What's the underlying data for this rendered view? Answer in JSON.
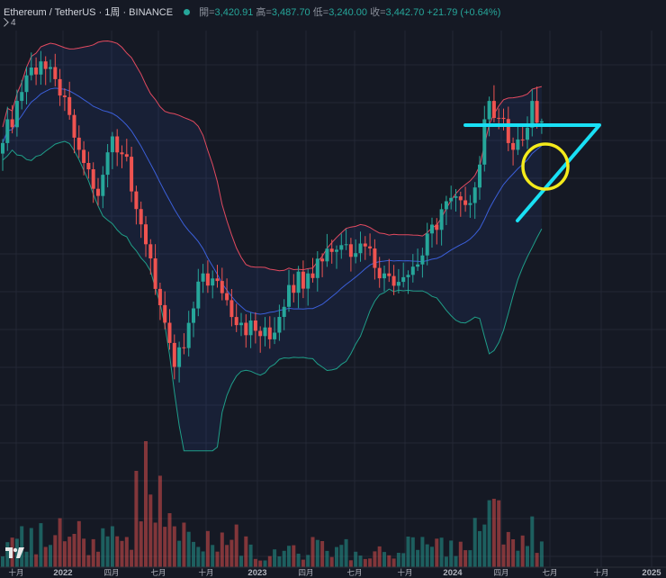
{
  "header": {
    "symbol": "Ethereum / TetherUS · 1周 · BINANCE",
    "open_label": "開=",
    "open": "3,420.91",
    "high_label": "高=",
    "high": "3,487.70",
    "low_label": "低=",
    "low": "3,240.00",
    "close_label": "收=",
    "close": "3,442.70",
    "change": "+21.79 (+0.64%)",
    "indicator_count": "4"
  },
  "colors": {
    "background": "#151924",
    "up": "#26a69a",
    "down": "#ef5350",
    "upper_band": "#e24a5f",
    "lower_band": "#1f9e89",
    "basis": "#3b5fd9",
    "annotation_line": "#19e0f5",
    "annotation_circle": "#f4ea1b"
  },
  "icons": {
    "indicator_toggle": "chevron-down-icon",
    "brand": "tradingview-logo-icon"
  },
  "chart_data": {
    "type": "candlestick",
    "title": "Ethereum / TetherUS · 1周 · BINANCE",
    "x_ticks": [
      "十月",
      "2022",
      "四月",
      "七月",
      "十月",
      "2023",
      "四月",
      "七月",
      "十月",
      "2024",
      "四月",
      "七月",
      "十月",
      "2025"
    ],
    "y_scale": "log",
    "y_range": [
      800,
      5200
    ],
    "grid": true,
    "indicators": [
      "Bollinger Bands (20, 2)",
      "Volume"
    ],
    "anchors": [
      {
        "t": 0,
        "close": 3100
      },
      {
        "t": 5,
        "close": 4300
      },
      {
        "t": 8,
        "close": 4600
      },
      {
        "t": 12,
        "close": 3900
      },
      {
        "t": 16,
        "close": 3000
      },
      {
        "t": 20,
        "close": 2400
      },
      {
        "t": 23,
        "close": 3200
      },
      {
        "t": 26,
        "close": 2900
      },
      {
        "t": 30,
        "close": 1900
      },
      {
        "t": 34,
        "close": 1300
      },
      {
        "t": 36,
        "close": 1050
      },
      {
        "t": 38,
        "close": 1150
      },
      {
        "t": 42,
        "close": 1650
      },
      {
        "t": 46,
        "close": 1500
      },
      {
        "t": 50,
        "close": 1300
      },
      {
        "t": 53,
        "close": 1250
      },
      {
        "t": 56,
        "close": 1200
      },
      {
        "t": 60,
        "close": 1560
      },
      {
        "t": 64,
        "close": 1650
      },
      {
        "t": 68,
        "close": 1860
      },
      {
        "t": 72,
        "close": 1900
      },
      {
        "t": 76,
        "close": 1880
      },
      {
        "t": 80,
        "close": 1650
      },
      {
        "t": 84,
        "close": 1620
      },
      {
        "t": 88,
        "close": 1800
      },
      {
        "t": 92,
        "close": 2250
      },
      {
        "t": 96,
        "close": 2350
      },
      {
        "t": 99,
        "close": 2500
      },
      {
        "t": 102,
        "close": 3800
      },
      {
        "t": 104,
        "close": 3500
      },
      {
        "t": 107,
        "close": 3000
      },
      {
        "t": 109,
        "close": 3150
      },
      {
        "t": 111,
        "close": 3800
      },
      {
        "t": 113,
        "close": 3442.7
      }
    ],
    "last_candle": {
      "open": 3420.91,
      "high": 3487.7,
      "low": 3240.0,
      "close": 3442.7
    }
  }
}
